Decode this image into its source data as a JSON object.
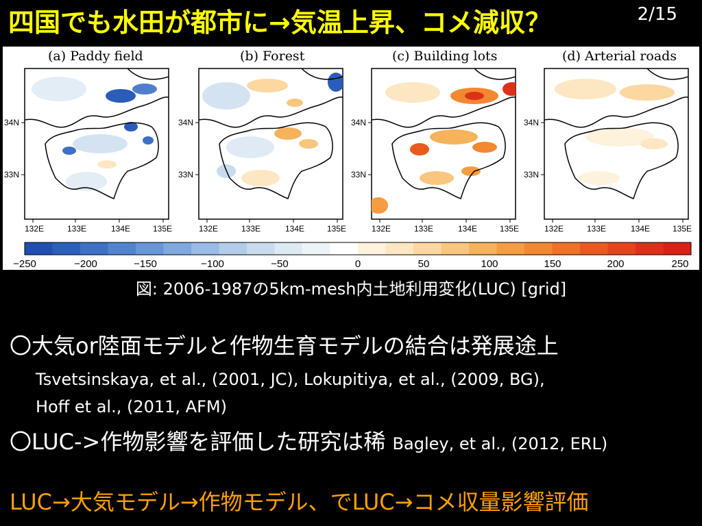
{
  "slide": {
    "title": "四国でも水田が都市に→気温上昇、コメ減収？",
    "page_number": "2/15"
  },
  "figure": {
    "panels": [
      {
        "title": "(a) Paddy field"
      },
      {
        "title": "(b) Forest"
      },
      {
        "title": "(c) Building lots"
      },
      {
        "title": "(d) Arterial roads"
      }
    ],
    "lat_labels": [
      "34N",
      "33N"
    ],
    "lon_labels": [
      "132E",
      "133E",
      "134E",
      "135E"
    ],
    "colorbar": {
      "tick_labels": [
        "−250",
        "−200",
        "−150",
        "−100",
        "−50",
        "0",
        "50",
        "100",
        "150",
        "200",
        "250"
      ],
      "colors": [
        "#1f4fb0",
        "#2b5fbc",
        "#3d70c6",
        "#5283cf",
        "#6896d8",
        "#80a8df",
        "#99bbe5",
        "#b2cde9",
        "#c8dcee",
        "#dceaf2",
        "#edf4f7",
        "#ffffff",
        "#fdf2dc",
        "#fce7c2",
        "#fbd8a0",
        "#f9c67e",
        "#f7b25c",
        "#f59d40",
        "#f28830",
        "#ef7226",
        "#ea5a1f",
        "#e4451b",
        "#de3019",
        "#d82218"
      ]
    }
  },
  "caption": "図: 2006-1987の5km-mesh内土地利用変化(LUC) [grid]",
  "bullets": {
    "b1_text": "〇大気or陸面モデルと作物生育モデルの結合は発展途上",
    "b1_ref1": "Tsvetsinskaya, et al., (2001,  JC),  Lokupitiya, et al., (2009, BG),",
    "b1_ref2": "Hoff et al., (2011, AFM)",
    "b2_text": "〇LUC->作物影響を評価した研究は稀",
    "b2_cite": "Bagley, et al., (2012, ERL)"
  },
  "conclusion": "LUC→大気モデル→作物モデル、でLUC→コメ収量影響評価"
}
